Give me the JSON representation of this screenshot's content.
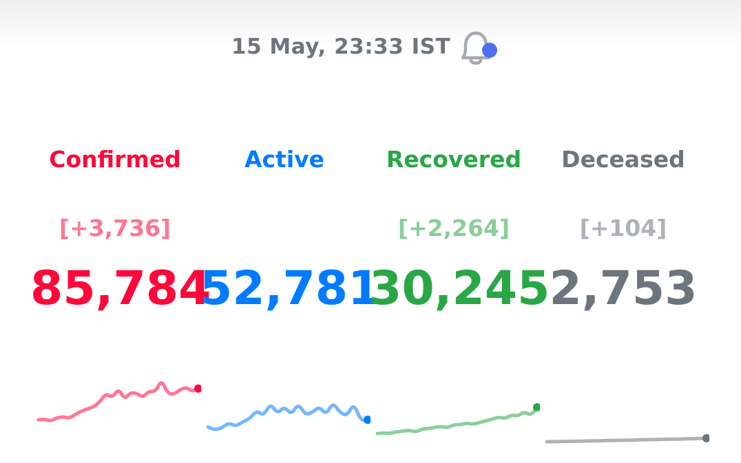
{
  "header": {
    "timestamp": "15 May, 23:33 IST",
    "bell_icon": "bell-icon",
    "notification_dot_color": "#4f6ff0"
  },
  "stats": [
    {
      "id": "confirmed",
      "label": "Confirmed",
      "delta": "[+3,736]",
      "value": "85,784",
      "color": "#ff073a"
    },
    {
      "id": "active",
      "label": "Active",
      "delta": "",
      "value": "52,781",
      "color": "#007bff"
    },
    {
      "id": "recovered",
      "label": "Recovered",
      "delta": "[+2,264]",
      "value": "30,245",
      "color": "#28a745"
    },
    {
      "id": "deceased",
      "label": "Deceased",
      "delta": "[+104]",
      "value": "2,753",
      "color": "#6c757d"
    }
  ],
  "sparklines": [
    {
      "id": "confirmed",
      "color": "#ff073a",
      "values": [
        2,
        2.2,
        1.5,
        2.8,
        3.2,
        2.6,
        4.2,
        5.5,
        6.4,
        7.2,
        9.3,
        12.5,
        10.8,
        14.5,
        10.2,
        13.0,
        12.5,
        11.0,
        13.5,
        13.2,
        18.0,
        12.6,
        12.2,
        14.0,
        15.0,
        13.3,
        14.5
      ]
    },
    {
      "id": "active",
      "color": "#007bff",
      "values": [
        2.5,
        1.0,
        2.0,
        4.5,
        2.8,
        5.0,
        6.5,
        10.5,
        8.0,
        14.0,
        9.0,
        12.5,
        8.5,
        14.0,
        8.5,
        9.5,
        12.5,
        8.5,
        14.5,
        9.5,
        8.0,
        14.0,
        5.5,
        6.0
      ]
    },
    {
      "id": "recovered",
      "color": "#28a745",
      "values": [
        1.0,
        1.2,
        1.0,
        1.8,
        2.0,
        2.5,
        1.6,
        3.0,
        3.2,
        3.8,
        4.2,
        3.6,
        5.0,
        5.0,
        5.8,
        5.2,
        6.0,
        6.8,
        7.6,
        8.5,
        7.8,
        9.5,
        9.0,
        11.0,
        9.2,
        13.0
      ]
    },
    {
      "id": "deceased",
      "color": "#6c757d",
      "values": [
        1.0,
        1.0,
        1.05,
        1.1,
        1.15,
        1.2,
        1.25,
        1.3,
        1.35,
        1.4,
        1.45,
        1.5,
        1.55,
        1.6,
        1.65,
        1.7,
        1.8
      ]
    }
  ]
}
